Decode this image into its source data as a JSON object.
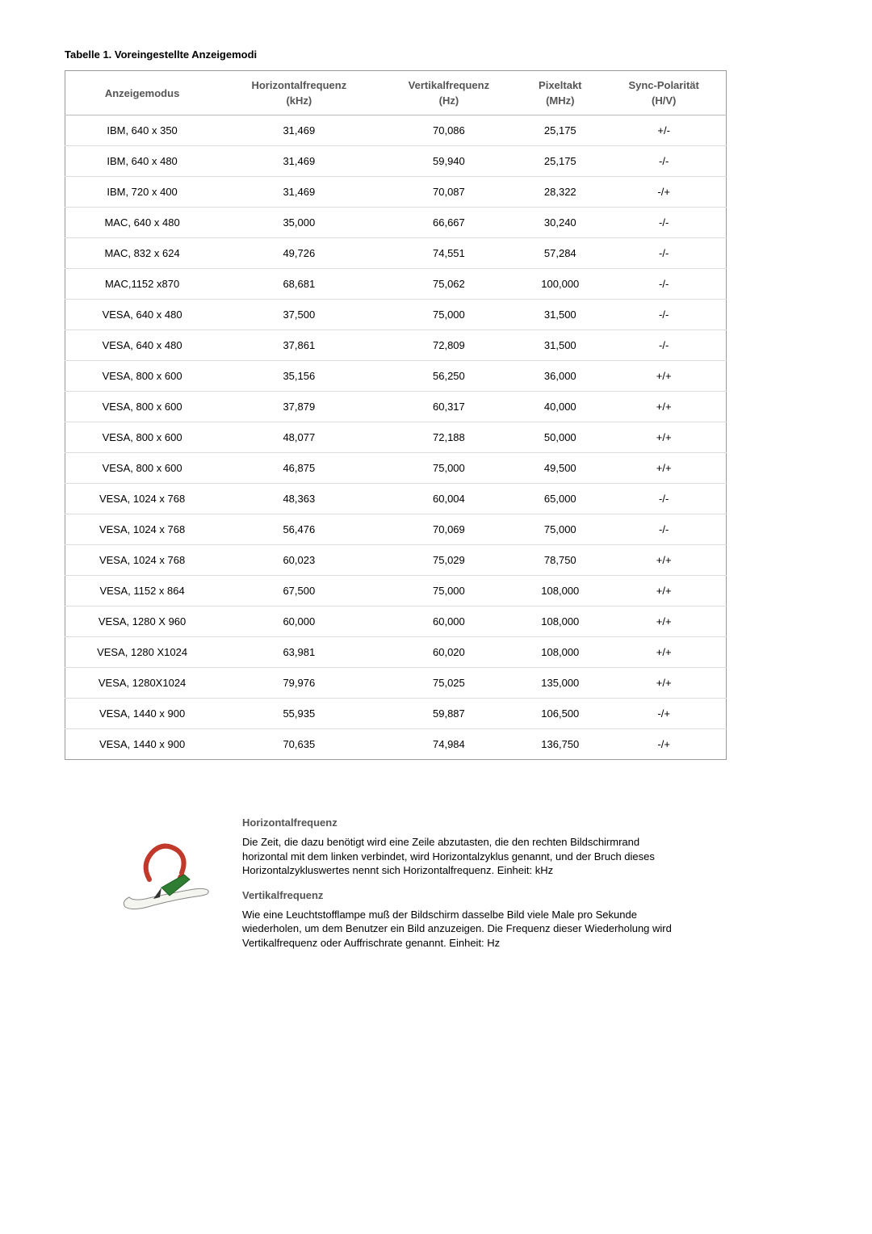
{
  "title": "Tabelle 1. Voreingestellte Anzeigemodi",
  "columns": {
    "c0": {
      "label": "Anzeigemodus",
      "unit": ""
    },
    "c1": {
      "label": "Horizontalfrequenz",
      "unit": "(kHz)"
    },
    "c2": {
      "label": "Vertikalfrequenz",
      "unit": "(Hz)"
    },
    "c3": {
      "label": "Pixeltakt",
      "unit": "(MHz)"
    },
    "c4": {
      "label": "Sync-Polarität",
      "unit": "(H/V)"
    }
  },
  "rows": [
    {
      "mode": "IBM, 640 x 350",
      "h": "31,469",
      "v": "70,086",
      "p": "25,175",
      "s": "+/-"
    },
    {
      "mode": "IBM, 640 x 480",
      "h": "31,469",
      "v": "59,940",
      "p": "25,175",
      "s": "-/-"
    },
    {
      "mode": "IBM, 720 x 400",
      "h": "31,469",
      "v": "70,087",
      "p": "28,322",
      "s": "-/+"
    },
    {
      "mode": "MAC, 640 x 480",
      "h": "35,000",
      "v": "66,667",
      "p": "30,240",
      "s": "-/-"
    },
    {
      "mode": "MAC, 832 x 624",
      "h": "49,726",
      "v": "74,551",
      "p": "57,284",
      "s": "-/-"
    },
    {
      "mode": "MAC,1152 x870",
      "h": "68,681",
      "v": "75,062",
      "p": "100,000",
      "s": "-/-"
    },
    {
      "mode": "VESA, 640 x 480",
      "h": "37,500",
      "v": "75,000",
      "p": "31,500",
      "s": "-/-"
    },
    {
      "mode": "VESA, 640 x 480",
      "h": "37,861",
      "v": "72,809",
      "p": "31,500",
      "s": "-/-"
    },
    {
      "mode": "VESA, 800 x 600",
      "h": "35,156",
      "v": "56,250",
      "p": "36,000",
      "s": "+/+"
    },
    {
      "mode": "VESA, 800 x 600",
      "h": "37,879",
      "v": "60,317",
      "p": "40,000",
      "s": "+/+"
    },
    {
      "mode": "VESA, 800 x 600",
      "h": "48,077",
      "v": "72,188",
      "p": "50,000",
      "s": "+/+"
    },
    {
      "mode": "VESA, 800 x 600",
      "h": "46,875",
      "v": "75,000",
      "p": "49,500",
      "s": "+/+"
    },
    {
      "mode": "VESA, 1024 x 768",
      "h": "48,363",
      "v": "60,004",
      "p": "65,000",
      "s": "-/-"
    },
    {
      "mode": "VESA, 1024 x 768",
      "h": "56,476",
      "v": "70,069",
      "p": "75,000",
      "s": "-/-"
    },
    {
      "mode": "VESA, 1024 x 768",
      "h": "60,023",
      "v": "75,029",
      "p": "78,750",
      "s": "+/+"
    },
    {
      "mode": "VESA, 1152 x 864",
      "h": "67,500",
      "v": "75,000",
      "p": "108,000",
      "s": "+/+"
    },
    {
      "mode": "VESA, 1280 X 960",
      "h": "60,000",
      "v": "60,000",
      "p": "108,000",
      "s": "+/+"
    },
    {
      "mode": "VESA, 1280 X1024",
      "h": "63,981",
      "v": "60,020",
      "p": "108,000",
      "s": "+/+"
    },
    {
      "mode": "VESA, 1280X1024",
      "h": "79,976",
      "v": "75,025",
      "p": "135,000",
      "s": "+/+"
    },
    {
      "mode": "VESA, 1440 x 900",
      "h": "55,935",
      "v": "59,887",
      "p": "106,500",
      "s": "-/+"
    },
    {
      "mode": "VESA, 1440 x 900",
      "h": "70,635",
      "v": "74,984",
      "p": "136,750",
      "s": "-/+"
    }
  ],
  "info": {
    "heading1": "Horizontalfrequenz",
    "body1": "Die Zeit, die dazu benötigt wird eine Zeile abzutasten, die den rechten Bildschirmrand horizontal mit dem linken verbindet, wird Horizontalzyklus genannt, und der Bruch dieses Horizontalzykluswertes nennt sich Horizontalfrequenz. Einheit: kHz",
    "heading2": "Vertikalfrequenz",
    "body2": "Wie eine Leuchtstofflampe muß der Bildschirm dasselbe Bild viele Male pro Sekunde wiederholen, um dem Benutzer ein Bild anzuzeigen. Die Frequenz dieser Wiederholung wird Vertikalfrequenz oder Auffrischrate genannt. Einheit: Hz"
  }
}
